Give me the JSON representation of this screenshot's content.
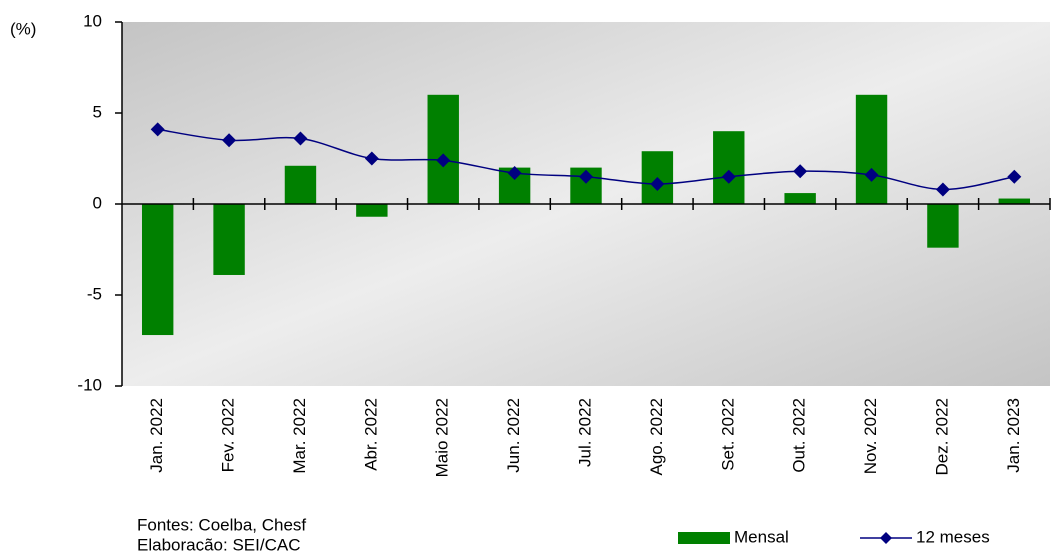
{
  "chart_data": {
    "type": "bar_line",
    "y_label": "(%)",
    "categories": [
      "Jan. 2022",
      "Fev. 2022",
      "Mar. 2022",
      "Abr. 2022",
      "Maio 2022",
      "Jun. 2022",
      "Jul. 2022",
      "Ago. 2022",
      "Set. 2022",
      "Out. 2022",
      "Nov. 2022",
      "Dez. 2022",
      "Jan. 2023"
    ],
    "series": [
      {
        "name": "Mensal",
        "type": "bar",
        "color": "#008000",
        "values": [
          -7.2,
          -3.9,
          2.1,
          -0.7,
          6.0,
          2.0,
          2.0,
          2.9,
          4.0,
          0.6,
          6.0,
          -2.4,
          0.3
        ]
      },
      {
        "name": "12 meses",
        "type": "line",
        "color": "#000080",
        "values": [
          4.1,
          3.5,
          3.6,
          2.5,
          2.4,
          1.7,
          1.5,
          1.1,
          1.5,
          1.8,
          1.6,
          0.8,
          1.5
        ]
      }
    ],
    "ylim": [
      -10,
      10
    ],
    "yticks": [
      -10,
      -5,
      0,
      5,
      10
    ],
    "notes": [
      "Fontes: Coelba, Chesf",
      "Elaboração: SEI/CAC"
    ]
  }
}
